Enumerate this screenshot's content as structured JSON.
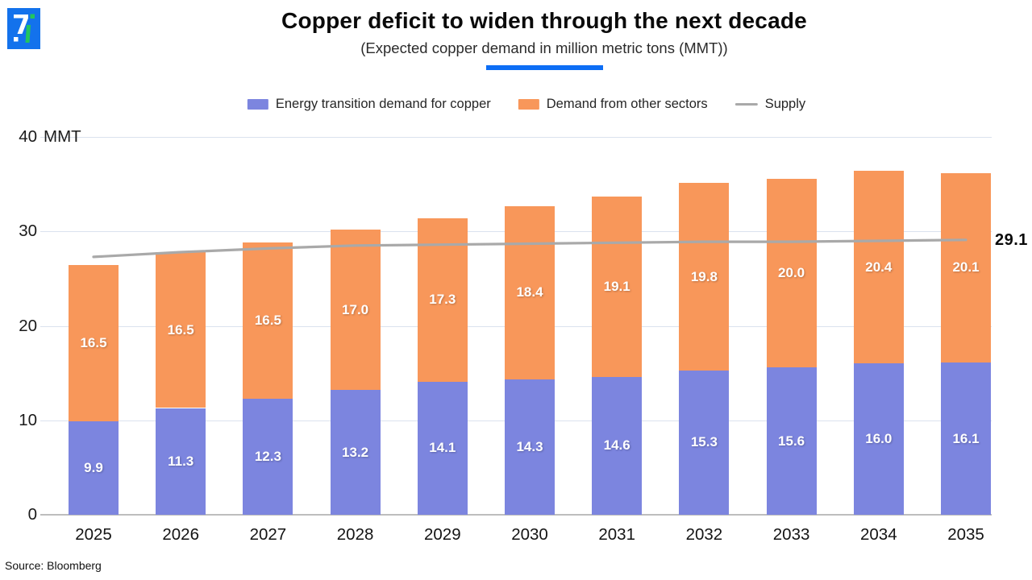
{
  "brand": {
    "logo_blue": "#1372ec",
    "logo_green": "#22c55e",
    "accent_underline_color": "#0d6ef5"
  },
  "header": {
    "title": "Copper deficit to widen through the next decade",
    "subtitle": "(Expected copper demand in million metric tons (MMT))"
  },
  "chart_data": {
    "type": "bar",
    "subtype": "stacked-bars-with-line-overlay",
    "title": "Copper deficit to widen through the next decade",
    "subtitle": "(Expected copper demand in million metric tons (MMT))",
    "categories": [
      "2025",
      "2026",
      "2027",
      "2028",
      "2029",
      "2030",
      "2031",
      "2032",
      "2033",
      "2034",
      "2035"
    ],
    "series": [
      {
        "name": "Energy transition demand for copper",
        "color": "#7c85df",
        "values": [
          9.9,
          11.3,
          12.3,
          13.2,
          14.1,
          14.3,
          14.6,
          15.3,
          15.6,
          16.0,
          16.1
        ]
      },
      {
        "name": "Demand from other sectors",
        "color": "#f8975a",
        "values": [
          16.5,
          16.5,
          16.5,
          17.0,
          17.3,
          18.4,
          19.1,
          19.8,
          20.0,
          20.4,
          20.1
        ]
      }
    ],
    "line_series": {
      "name": "Supply",
      "color": "#a9a9a9",
      "values": [
        27.3,
        27.8,
        28.2,
        28.5,
        28.6,
        28.7,
        28.8,
        28.9,
        28.9,
        29.0,
        29.1
      ],
      "end_label": "29.1"
    },
    "unit_label": "MMT",
    "ylim": [
      0,
      40
    ],
    "yticks": [
      0,
      10,
      20,
      30,
      40
    ],
    "grid": true,
    "legend_position": "top",
    "value_label_style": "white bold, centered inside each stacked segment"
  },
  "source": "Source: Bloomberg"
}
